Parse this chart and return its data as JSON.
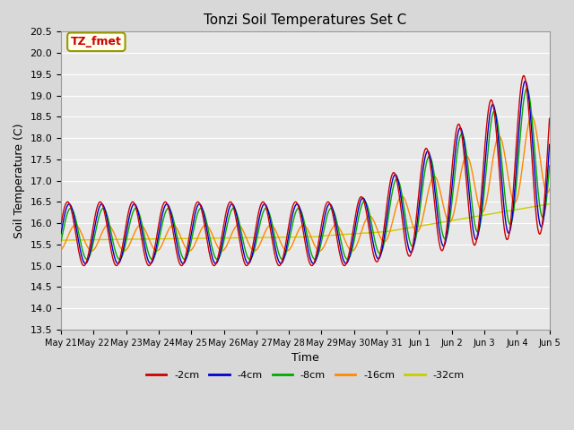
{
  "title": "Tonzi Soil Temperatures Set C",
  "xlabel": "Time",
  "ylabel": "Soil Temperature (C)",
  "ylim": [
    13.5,
    20.5
  ],
  "series_colors": {
    "-2cm": "#cc0000",
    "-4cm": "#0000cc",
    "-8cm": "#00aa00",
    "-16cm": "#ff8800",
    "-32cm": "#cccc00"
  },
  "annotation_text": "TZ_fmet",
  "annotation_color": "#cc0000",
  "annotation_bg": "#ffffee",
  "annotation_border": "#999900",
  "background_color": "#e8e8e8",
  "grid_color": "#ffffff",
  "tick_labels": [
    "May 21",
    "May 22",
    "May 23",
    "May 24",
    "May 25",
    "May 26",
    "May 27",
    "May 28",
    "May 29",
    "May 30",
    "May 31",
    "Jun 1",
    "Jun 2",
    "Jun 3",
    "Jun 4",
    "Jun 5"
  ],
  "yticks": [
    13.5,
    14.0,
    14.5,
    15.0,
    15.5,
    16.0,
    16.5,
    17.0,
    17.5,
    18.0,
    18.5,
    19.0,
    19.5,
    20.0,
    20.5
  ]
}
